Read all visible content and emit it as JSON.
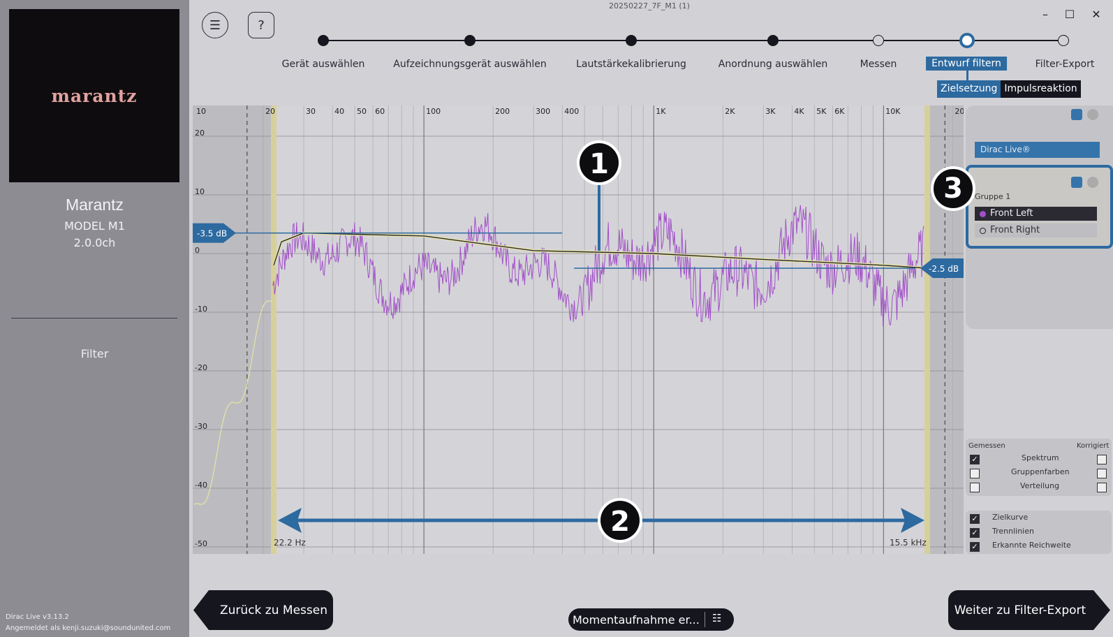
{
  "window": {
    "title": "20250227_7F_M1 (1)"
  },
  "sidebar": {
    "brand": "marantz",
    "device_name": "Marantz",
    "device_model": "MODEL M1",
    "device_channels": "2.0.0ch",
    "current_section": "Filter",
    "version": "Dirac Live v3.13.2",
    "user": "Angemeldet als kenji.suzuki@soundunited.com"
  },
  "steps": [
    {
      "label": "Gerät auswählen",
      "state": "done"
    },
    {
      "label": "Aufzeichnungsgerät auswählen",
      "state": "done"
    },
    {
      "label": "Lautstärkekalibrierung",
      "state": "done"
    },
    {
      "label": "Anordnung auswählen",
      "state": "done"
    },
    {
      "label": "Messen",
      "state": "open"
    },
    {
      "label": "Entwurf filtern",
      "state": "current"
    },
    {
      "label": "Filter-Export",
      "state": "open"
    }
  ],
  "sub_tabs": [
    "Zielsetzung",
    "Impulsreaktion"
  ],
  "graph": {
    "x_ticks": [
      "10",
      "20",
      "30",
      "40",
      "50",
      "60",
      "100",
      "200",
      "300",
      "400",
      "1K",
      "2K",
      "3K",
      "4K",
      "5K",
      "6K",
      "10K",
      "20"
    ],
    "y_ticks": [
      "20",
      "10",
      "0",
      "-10",
      "-20",
      "-30",
      "-40",
      "-50"
    ],
    "low_handle": "-3.5 dB",
    "high_handle": "-2.5 dB",
    "low_limit": "22.2 Hz",
    "high_limit": "15.5 kHz",
    "callouts": [
      "1",
      "2",
      "3"
    ]
  },
  "panel": {
    "dirac_item": "Dirac Live®",
    "group_label": "Gruppe 1",
    "channels": [
      "Front Left",
      "Front Right"
    ]
  },
  "options": {
    "measured_header": "Gemessen",
    "corrected_header": "Korrigiert",
    "rows": [
      {
        "label": "Spektrum",
        "measured": true,
        "corrected": false
      },
      {
        "label": "Gruppenfarben",
        "measured": false,
        "corrected": false
      },
      {
        "label": "Verteilung",
        "measured": false,
        "corrected": false
      }
    ],
    "display": [
      {
        "label": "Zielkurve",
        "checked": true
      },
      {
        "label": "Trennlinien",
        "checked": true
      },
      {
        "label": "Erkannte Reichweite",
        "checked": true
      }
    ]
  },
  "buttons": {
    "back": "Zurück zu Messen",
    "next": "Weiter zu Filter-Export",
    "snapshot": "Momentaufnahme er..."
  },
  "colors": {
    "accent": "#2d6aa0",
    "dark": "#15161e",
    "measured_curve": "#a24fc8",
    "target_curve": "#e8e3a8"
  }
}
